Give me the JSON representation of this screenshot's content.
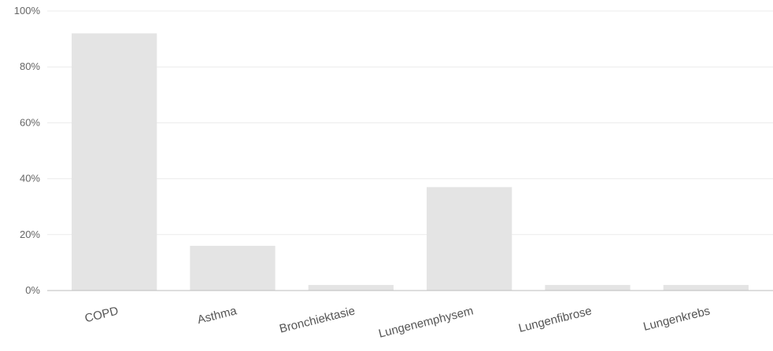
{
  "chart_data": {
    "type": "bar",
    "title": "",
    "xlabel": "",
    "ylabel": "",
    "categories": [
      "COPD",
      "Asthma",
      "Bronchiektasie",
      "Lungenemphysem",
      "Lungenfibrose",
      "Lungenkrebs"
    ],
    "values": [
      92,
      16,
      2,
      37,
      2,
      2
    ],
    "ylim": [
      0,
      100
    ],
    "yticks": [
      "0%",
      "20%",
      "40%",
      "60%",
      "80%",
      "100%"
    ],
    "ytick_values": [
      0,
      20,
      40,
      60,
      80,
      100
    ],
    "grid": true,
    "legend": "none",
    "bar_color": "#e4e4e4"
  }
}
